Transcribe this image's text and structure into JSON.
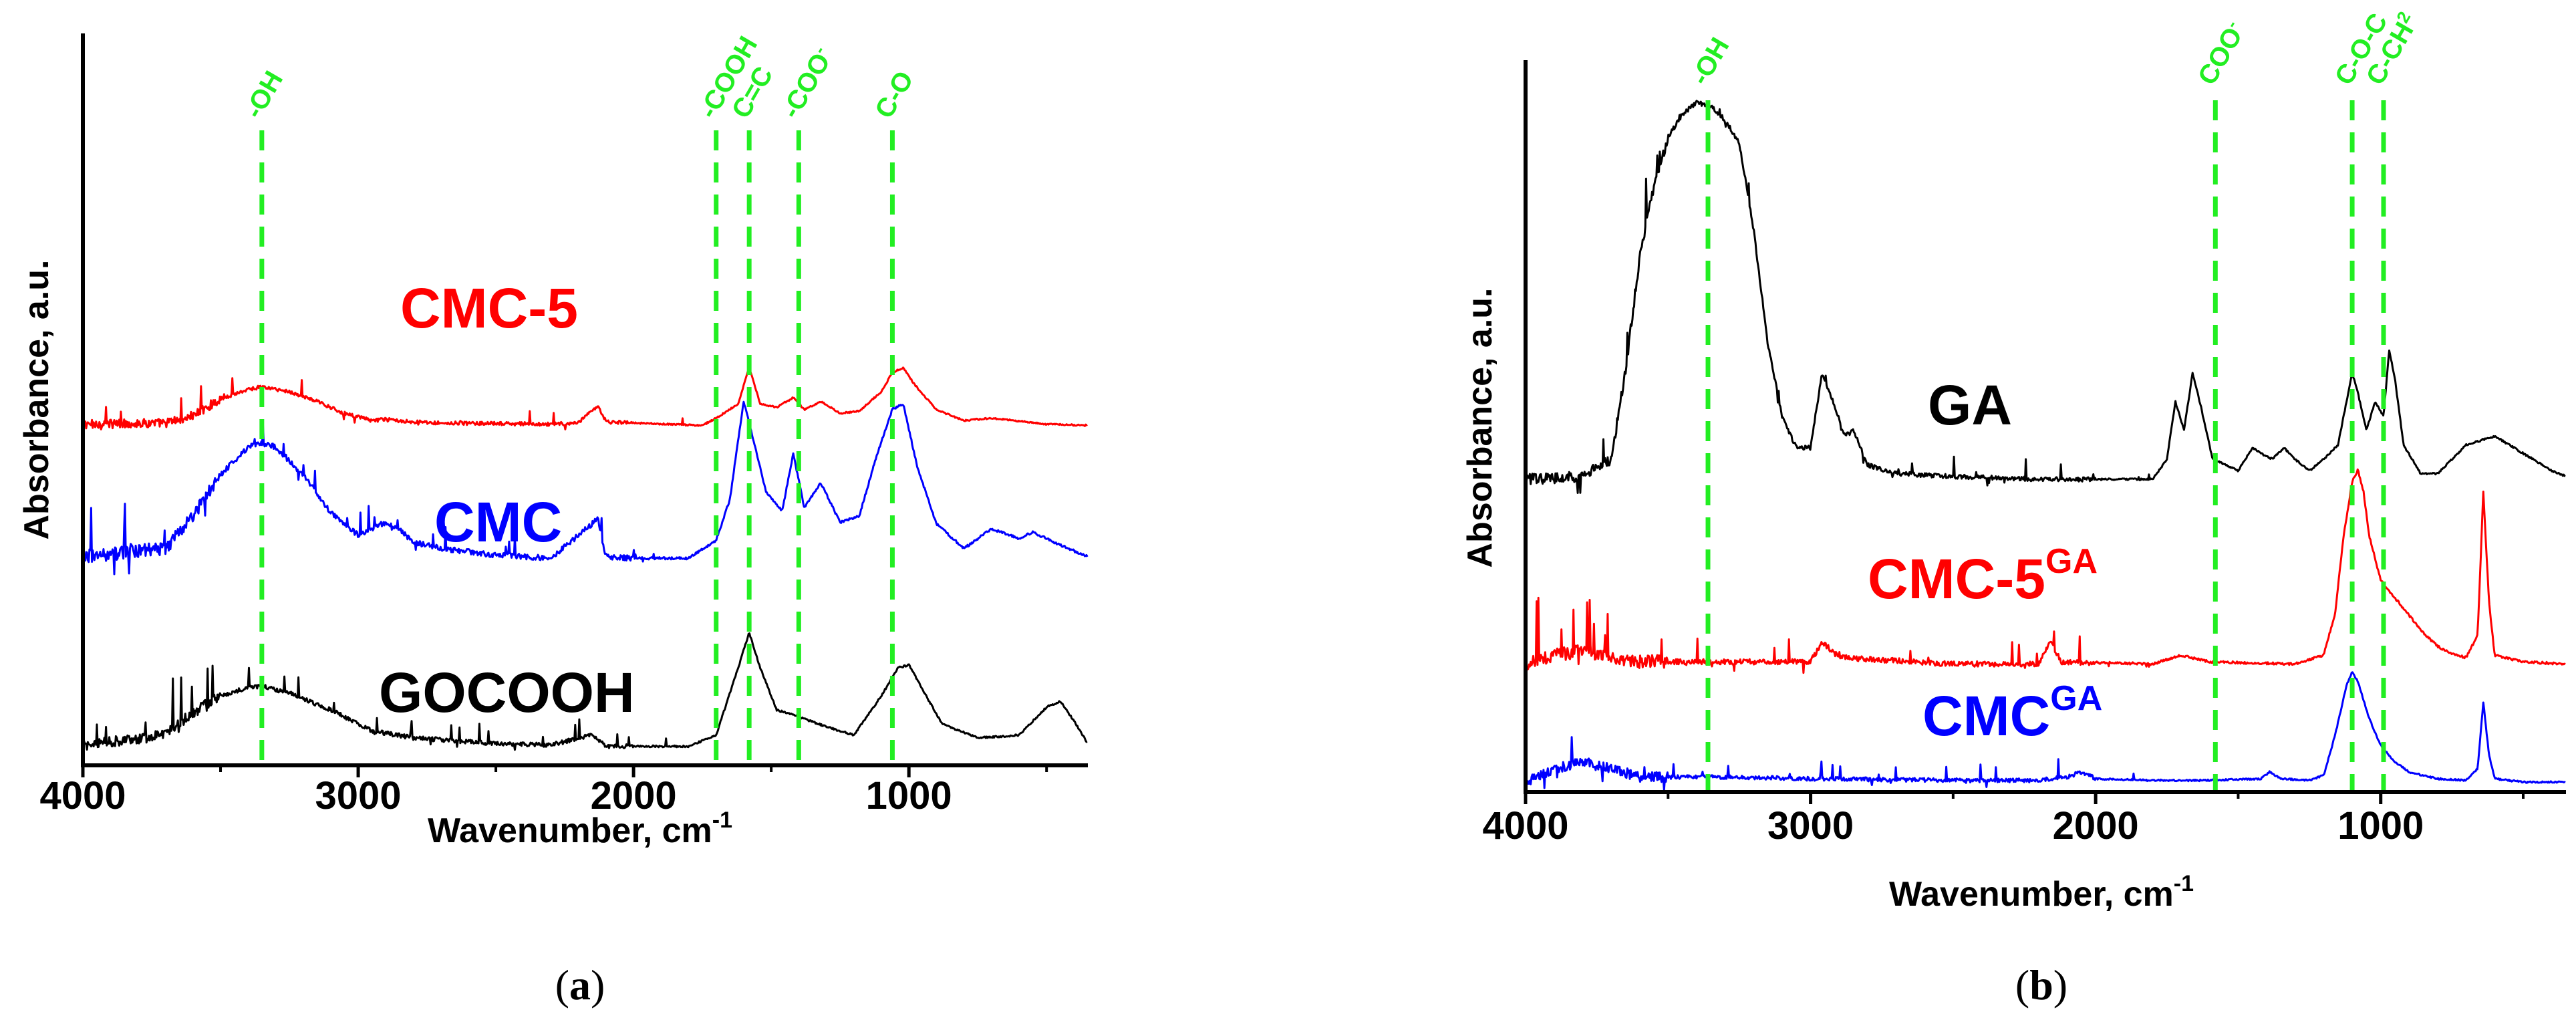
{
  "colors": {
    "marker": "#22ee22",
    "axis": "#000000"
  },
  "chart_data": [
    {
      "type": "line",
      "panel": "a",
      "caption": {
        "open": "(",
        "letter": "a",
        "close": ")"
      },
      "xlabel": {
        "text": "Wavenumber, cm",
        "sup": "-1"
      },
      "ylabel": "Absorbance, a.u.",
      "xlim": [
        4000,
        350
      ],
      "x_ticks": [
        4000,
        3000,
        2000,
        1000
      ],
      "x_tick_labels": [
        "4000",
        "3000",
        "2000",
        "1000"
      ],
      "markers": [
        {
          "x": 3350,
          "label": "-OH",
          "sup": ""
        },
        {
          "x": 1700,
          "label": "-COOH",
          "sup": ""
        },
        {
          "x": 1580,
          "label": "C=C",
          "sup": ""
        },
        {
          "x": 1400,
          "label": "-COO",
          "sup": "-"
        },
        {
          "x": 1060,
          "label": "C-O",
          "sup": ""
        }
      ],
      "series": [
        {
          "name": "CMC-5",
          "sup": "",
          "color": "#ff0000",
          "noise": 0.5,
          "points": [
            [
              4000,
              0.03
            ],
            [
              3700,
              0.04
            ],
            [
              3600,
              0.1
            ],
            [
              3500,
              0.24
            ],
            [
              3400,
              0.32
            ],
            [
              3350,
              0.34
            ],
            [
              3250,
              0.3
            ],
            [
              3150,
              0.22
            ],
            [
              3050,
              0.12
            ],
            [
              2950,
              0.06
            ],
            [
              2900,
              0.07
            ],
            [
              2800,
              0.05
            ],
            [
              2700,
              0.04
            ],
            [
              2300,
              0.03
            ],
            [
              2200,
              0.04
            ],
            [
              2130,
              0.18
            ],
            [
              2100,
              0.05
            ],
            [
              2000,
              0.04
            ],
            [
              1750,
              0.02
            ],
            [
              1700,
              0.08
            ],
            [
              1620,
              0.2
            ],
            [
              1580,
              0.5
            ],
            [
              1540,
              0.2
            ],
            [
              1480,
              0.17
            ],
            [
              1420,
              0.25
            ],
            [
              1380,
              0.15
            ],
            [
              1320,
              0.22
            ],
            [
              1250,
              0.12
            ],
            [
              1180,
              0.14
            ],
            [
              1100,
              0.3
            ],
            [
              1060,
              0.46
            ],
            [
              1020,
              0.5
            ],
            [
              980,
              0.36
            ],
            [
              900,
              0.15
            ],
            [
              800,
              0.06
            ],
            [
              700,
              0.08
            ],
            [
              500,
              0.03
            ],
            [
              350,
              0.02
            ]
          ]
        },
        {
          "name": "CMC",
          "sup": "",
          "color": "#0000ff",
          "noise": 0.55,
          "points": [
            [
              4000,
              0.05
            ],
            [
              3700,
              0.1
            ],
            [
              3600,
              0.3
            ],
            [
              3500,
              0.55
            ],
            [
              3400,
              0.72
            ],
            [
              3350,
              0.74
            ],
            [
              3300,
              0.72
            ],
            [
              3200,
              0.55
            ],
            [
              3100,
              0.32
            ],
            [
              3000,
              0.18
            ],
            [
              2920,
              0.25
            ],
            [
              2870,
              0.24
            ],
            [
              2800,
              0.14
            ],
            [
              2700,
              0.1
            ],
            [
              2500,
              0.06
            ],
            [
              2300,
              0.04
            ],
            [
              2130,
              0.28
            ],
            [
              2100,
              0.05
            ],
            [
              2000,
              0.04
            ],
            [
              1800,
              0.04
            ],
            [
              1700,
              0.15
            ],
            [
              1650,
              0.4
            ],
            [
              1600,
              1.0
            ],
            [
              1570,
              0.8
            ],
            [
              1520,
              0.45
            ],
            [
              1460,
              0.33
            ],
            [
              1420,
              0.68
            ],
            [
              1380,
              0.35
            ],
            [
              1320,
              0.5
            ],
            [
              1250,
              0.26
            ],
            [
              1180,
              0.3
            ],
            [
              1120,
              0.65
            ],
            [
              1060,
              0.95
            ],
            [
              1020,
              0.98
            ],
            [
              970,
              0.6
            ],
            [
              900,
              0.25
            ],
            [
              800,
              0.1
            ],
            [
              700,
              0.22
            ],
            [
              600,
              0.16
            ],
            [
              550,
              0.2
            ],
            [
              450,
              0.12
            ],
            [
              350,
              0.05
            ]
          ]
        },
        {
          "name": "GOCOOH",
          "sup": "",
          "color": "#000000",
          "noise": 0.5,
          "points": [
            [
              4000,
              0.05
            ],
            [
              3700,
              0.12
            ],
            [
              3600,
              0.28
            ],
            [
              3500,
              0.4
            ],
            [
              3400,
              0.46
            ],
            [
              3350,
              0.47
            ],
            [
              3250,
              0.42
            ],
            [
              3100,
              0.3
            ],
            [
              2950,
              0.15
            ],
            [
              2800,
              0.1
            ],
            [
              2500,
              0.06
            ],
            [
              2300,
              0.05
            ],
            [
              2150,
              0.12
            ],
            [
              2100,
              0.04
            ],
            [
              2000,
              0.04
            ],
            [
              1800,
              0.04
            ],
            [
              1700,
              0.12
            ],
            [
              1620,
              0.6
            ],
            [
              1580,
              0.85
            ],
            [
              1540,
              0.6
            ],
            [
              1480,
              0.3
            ],
            [
              1400,
              0.25
            ],
            [
              1300,
              0.18
            ],
            [
              1200,
              0.12
            ],
            [
              1100,
              0.4
            ],
            [
              1040,
              0.6
            ],
            [
              1000,
              0.62
            ],
            [
              960,
              0.48
            ],
            [
              880,
              0.2
            ],
            [
              750,
              0.1
            ],
            [
              600,
              0.12
            ],
            [
              500,
              0.32
            ],
            [
              450,
              0.36
            ],
            [
              400,
              0.22
            ],
            [
              350,
              0.06
            ]
          ]
        }
      ]
    },
    {
      "type": "line",
      "panel": "b",
      "caption": {
        "open": "(",
        "letter": "b",
        "close": ")"
      },
      "xlabel": {
        "text": "Wavenumber, cm",
        "sup": "-1"
      },
      "ylabel": "Absorbance, a.u.",
      "xlim": [
        4000,
        350
      ],
      "x_ticks": [
        4000,
        3000,
        2000,
        1000
      ],
      "x_tick_labels": [
        "4000",
        "3000",
        "2000",
        "1000"
      ],
      "markers": [
        {
          "x": 3360,
          "label": "-OH",
          "sup": ""
        },
        {
          "x": 1580,
          "label": "COO",
          "sup": "-"
        },
        {
          "x": 1100,
          "label": "C-O-C",
          "sup": ""
        },
        {
          "x": 990,
          "label": "C-CH",
          "sup": "2"
        }
      ],
      "series": [
        {
          "name": "GA",
          "sup": "",
          "color": "#000000",
          "noise": 0.25,
          "points": [
            [
              4000,
              0.03
            ],
            [
              3800,
              0.04
            ],
            [
              3700,
              0.1
            ],
            [
              3650,
              0.4
            ],
            [
              3600,
              0.8
            ],
            [
              3550,
              1.05
            ],
            [
              3500,
              1.22
            ],
            [
              3450,
              1.3
            ],
            [
              3400,
              1.34
            ],
            [
              3350,
              1.33
            ],
            [
              3300,
              1.28
            ],
            [
              3250,
              1.2
            ],
            [
              3200,
              0.9
            ],
            [
              3150,
              0.5
            ],
            [
              3100,
              0.25
            ],
            [
              3050,
              0.14
            ],
            [
              3000,
              0.14
            ],
            [
              2960,
              0.4
            ],
            [
              2920,
              0.3
            ],
            [
              2880,
              0.18
            ],
            [
              2850,
              0.2
            ],
            [
              2800,
              0.08
            ],
            [
              2700,
              0.05
            ],
            [
              2500,
              0.04
            ],
            [
              2200,
              0.03
            ],
            [
              2000,
              0.03
            ],
            [
              1800,
              0.03
            ],
            [
              1750,
              0.1
            ],
            [
              1720,
              0.3
            ],
            [
              1690,
              0.2
            ],
            [
              1660,
              0.4
            ],
            [
              1630,
              0.28
            ],
            [
              1590,
              0.1
            ],
            [
              1500,
              0.06
            ],
            [
              1450,
              0.14
            ],
            [
              1420,
              0.12
            ],
            [
              1380,
              0.1
            ],
            [
              1340,
              0.14
            ],
            [
              1300,
              0.1
            ],
            [
              1250,
              0.06
            ],
            [
              1200,
              0.1
            ],
            [
              1150,
              0.15
            ],
            [
              1120,
              0.3
            ],
            [
              1100,
              0.4
            ],
            [
              1080,
              0.33
            ],
            [
              1050,
              0.2
            ],
            [
              1020,
              0.3
            ],
            [
              990,
              0.25
            ],
            [
              970,
              0.48
            ],
            [
              950,
              0.38
            ],
            [
              920,
              0.15
            ],
            [
              860,
              0.05
            ],
            [
              800,
              0.05
            ],
            [
              700,
              0.15
            ],
            [
              600,
              0.18
            ],
            [
              500,
              0.12
            ],
            [
              400,
              0.06
            ],
            [
              350,
              0.04
            ]
          ]
        },
        {
          "name": "CMC-5",
          "sup": "GA",
          "color": "#ff0000",
          "noise": 0.4,
          "points": [
            [
              4000,
              0.02
            ],
            [
              3900,
              0.06
            ],
            [
              3800,
              0.08
            ],
            [
              3700,
              0.05
            ],
            [
              3600,
              0.03
            ],
            [
              3000,
              0.03
            ],
            [
              2960,
              0.12
            ],
            [
              2900,
              0.05
            ],
            [
              2500,
              0.02
            ],
            [
              2200,
              0.02
            ],
            [
              2160,
              0.12
            ],
            [
              2120,
              0.03
            ],
            [
              1800,
              0.02
            ],
            [
              1700,
              0.06
            ],
            [
              1600,
              0.03
            ],
            [
              1300,
              0.02
            ],
            [
              1200,
              0.06
            ],
            [
              1160,
              0.25
            ],
            [
              1130,
              0.6
            ],
            [
              1100,
              0.85
            ],
            [
              1080,
              0.9
            ],
            [
              1060,
              0.8
            ],
            [
              1040,
              0.6
            ],
            [
              1000,
              0.4
            ],
            [
              950,
              0.32
            ],
            [
              900,
              0.24
            ],
            [
              850,
              0.16
            ],
            [
              800,
              0.1
            ],
            [
              740,
              0.06
            ],
            [
              700,
              0.05
            ],
            [
              660,
              0.15
            ],
            [
              640,
              0.8
            ],
            [
              620,
              0.3
            ],
            [
              600,
              0.06
            ],
            [
              500,
              0.03
            ],
            [
              350,
              0.02
            ]
          ]
        },
        {
          "name": "CMC",
          "sup": "GA",
          "color": "#0000ff",
          "noise": 0.4,
          "points": [
            [
              4000,
              0.02
            ],
            [
              3900,
              0.1
            ],
            [
              3800,
              0.14
            ],
            [
              3700,
              0.1
            ],
            [
              3600,
              0.05
            ],
            [
              3300,
              0.05
            ],
            [
              3000,
              0.04
            ],
            [
              2500,
              0.03
            ],
            [
              2200,
              0.03
            ],
            [
              2100,
              0.05
            ],
            [
              2050,
              0.08
            ],
            [
              2000,
              0.04
            ],
            [
              1800,
              0.03
            ],
            [
              1600,
              0.03
            ],
            [
              1420,
              0.04
            ],
            [
              1390,
              0.08
            ],
            [
              1350,
              0.04
            ],
            [
              1250,
              0.03
            ],
            [
              1200,
              0.06
            ],
            [
              1160,
              0.3
            ],
            [
              1120,
              0.6
            ],
            [
              1100,
              0.68
            ],
            [
              1080,
              0.62
            ],
            [
              1040,
              0.4
            ],
            [
              1000,
              0.24
            ],
            [
              950,
              0.14
            ],
            [
              900,
              0.08
            ],
            [
              800,
              0.04
            ],
            [
              700,
              0.03
            ],
            [
              660,
              0.1
            ],
            [
              640,
              0.5
            ],
            [
              620,
              0.18
            ],
            [
              600,
              0.04
            ],
            [
              500,
              0.02
            ],
            [
              350,
              0.02
            ]
          ]
        }
      ]
    }
  ]
}
